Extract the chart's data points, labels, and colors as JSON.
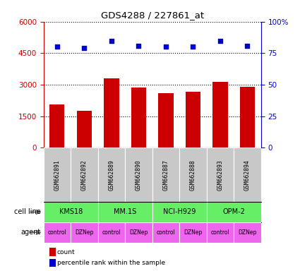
{
  "title": "GDS4288 / 227861_at",
  "samples": [
    "GSM662891",
    "GSM662892",
    "GSM662889",
    "GSM662890",
    "GSM662887",
    "GSM662888",
    "GSM662893",
    "GSM662894"
  ],
  "counts": [
    2050,
    1750,
    3300,
    2850,
    2600,
    2650,
    3150,
    2900
  ],
  "percentile_ranks": [
    80,
    79,
    85,
    81,
    80,
    80,
    85,
    81
  ],
  "cell_lines": [
    {
      "label": "KMS18",
      "start": 0,
      "end": 2
    },
    {
      "label": "MM.1S",
      "start": 2,
      "end": 4
    },
    {
      "label": "NCI-H929",
      "start": 4,
      "end": 6
    },
    {
      "label": "OPM-2",
      "start": 6,
      "end": 8
    }
  ],
  "agents": [
    "control",
    "DZNep",
    "control",
    "DZNep",
    "control",
    "DZNep",
    "control",
    "DZNep"
  ],
  "bar_color": "#cc0000",
  "dot_color": "#0000cc",
  "cell_line_color": "#66ee66",
  "agent_color": "#ee66ee",
  "sample_bg_color": "#c8c8c8",
  "ylim_left": [
    0,
    6000
  ],
  "ylim_right": [
    0,
    100
  ],
  "yticks_left": [
    0,
    1500,
    3000,
    4500,
    6000
  ],
  "yticks_right": [
    0,
    25,
    50,
    75,
    100
  ],
  "ytick_labels_left": [
    "0",
    "1500",
    "3000",
    "4500",
    "6000"
  ],
  "ytick_labels_right": [
    "0",
    "25",
    "50",
    "75",
    "100%"
  ],
  "left_tick_color": "#cc0000",
  "right_tick_color": "#0000cc",
  "legend_count_label": "count",
  "legend_pct_label": "percentile rank within the sample"
}
